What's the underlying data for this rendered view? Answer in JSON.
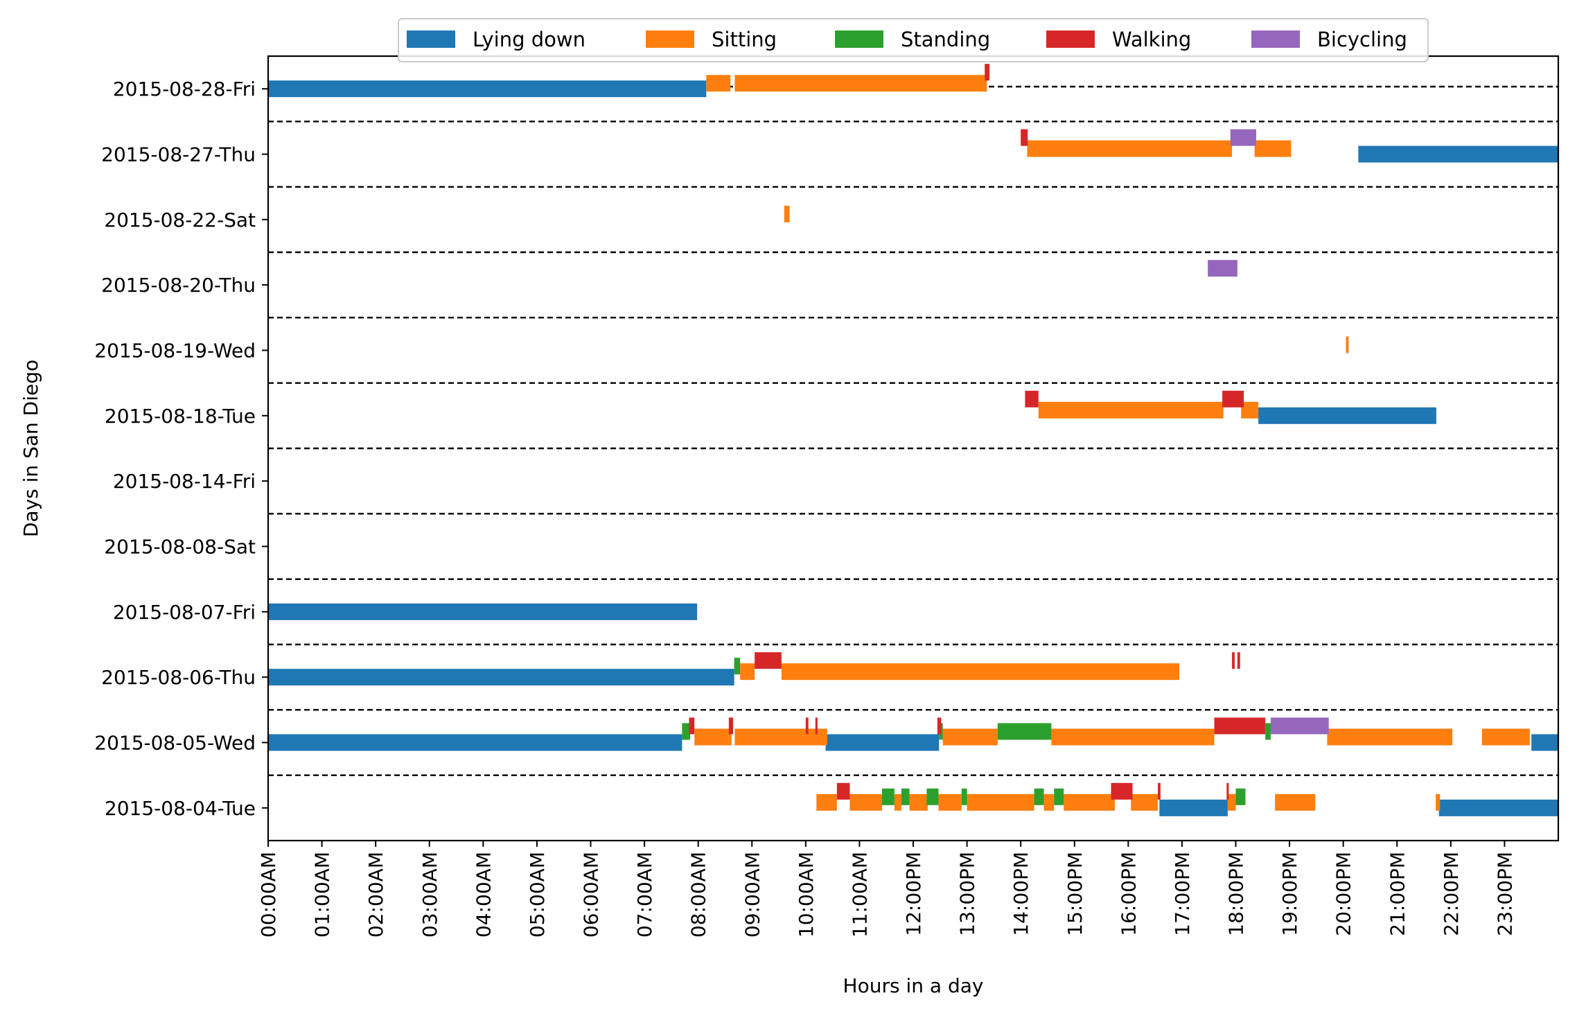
{
  "chart_data": {
    "type": "bar",
    "subtype": "horizontal-timeline",
    "title": "",
    "xlabel": "Hours in a day",
    "ylabel": "Days in San Diego",
    "xlim": [
      0,
      24
    ],
    "grid": false,
    "legend_position": "top-center",
    "x_ticks": [
      "00:00AM",
      "01:00AM",
      "02:00AM",
      "03:00AM",
      "04:00AM",
      "05:00AM",
      "06:00AM",
      "07:00AM",
      "08:00AM",
      "09:00AM",
      "10:00AM",
      "11:00AM",
      "12:00PM",
      "13:00PM",
      "14:00PM",
      "15:00PM",
      "16:00PM",
      "17:00PM",
      "18:00PM",
      "19:00PM",
      "20:00PM",
      "21:00PM",
      "22:00PM",
      "23:00PM"
    ],
    "days": [
      "2015-08-04-Tue",
      "2015-08-05-Wed",
      "2015-08-06-Thu",
      "2015-08-07-Fri",
      "2015-08-08-Sat",
      "2015-08-14-Fri",
      "2015-08-18-Tue",
      "2015-08-19-Wed",
      "2015-08-20-Thu",
      "2015-08-22-Sat",
      "2015-08-27-Thu",
      "2015-08-28-Fri"
    ],
    "series": [
      {
        "name": "Lying down",
        "color": "#1f77b4",
        "segments": [
          {
            "day": "2015-08-04-Tue",
            "start": 16.58,
            "end": 17.85
          },
          {
            "day": "2015-08-04-Tue",
            "start": 21.78,
            "end": 24.0
          },
          {
            "day": "2015-08-05-Wed",
            "start": 0.0,
            "end": 7.7
          },
          {
            "day": "2015-08-05-Wed",
            "start": 10.37,
            "end": 12.48
          },
          {
            "day": "2015-08-05-Wed",
            "start": 23.5,
            "end": 24.0
          },
          {
            "day": "2015-08-06-Thu",
            "start": 0.0,
            "end": 8.67
          },
          {
            "day": "2015-08-07-Fri",
            "start": 0.0,
            "end": 7.98
          },
          {
            "day": "2015-08-18-Tue",
            "start": 18.42,
            "end": 21.73
          },
          {
            "day": "2015-08-27-Thu",
            "start": 20.28,
            "end": 24.0
          },
          {
            "day": "2015-08-28-Fri",
            "start": 0.0,
            "end": 8.15
          }
        ]
      },
      {
        "name": "Sitting",
        "color": "#ff7f0e",
        "segments": [
          {
            "day": "2015-08-04-Tue",
            "start": 10.2,
            "end": 10.58
          },
          {
            "day": "2015-08-04-Tue",
            "start": 10.82,
            "end": 11.42
          },
          {
            "day": "2015-08-04-Tue",
            "start": 11.65,
            "end": 11.78
          },
          {
            "day": "2015-08-04-Tue",
            "start": 11.93,
            "end": 12.27
          },
          {
            "day": "2015-08-04-Tue",
            "start": 12.47,
            "end": 12.9
          },
          {
            "day": "2015-08-04-Tue",
            "start": 13.0,
            "end": 14.25
          },
          {
            "day": "2015-08-04-Tue",
            "start": 14.43,
            "end": 14.62
          },
          {
            "day": "2015-08-04-Tue",
            "start": 14.8,
            "end": 15.75
          },
          {
            "day": "2015-08-04-Tue",
            "start": 16.05,
            "end": 16.55
          },
          {
            "day": "2015-08-04-Tue",
            "start": 17.85,
            "end": 18.0
          },
          {
            "day": "2015-08-04-Tue",
            "start": 18.73,
            "end": 19.48
          },
          {
            "day": "2015-08-04-Tue",
            "start": 21.72,
            "end": 21.8
          },
          {
            "day": "2015-08-05-Wed",
            "start": 7.93,
            "end": 8.62
          },
          {
            "day": "2015-08-05-Wed",
            "start": 8.68,
            "end": 10.4
          },
          {
            "day": "2015-08-05-Wed",
            "start": 12.55,
            "end": 13.57
          },
          {
            "day": "2015-08-05-Wed",
            "start": 14.57,
            "end": 17.6
          },
          {
            "day": "2015-08-05-Wed",
            "start": 19.7,
            "end": 22.03
          },
          {
            "day": "2015-08-05-Wed",
            "start": 22.58,
            "end": 23.47
          },
          {
            "day": "2015-08-06-Thu",
            "start": 8.78,
            "end": 9.05
          },
          {
            "day": "2015-08-06-Thu",
            "start": 9.55,
            "end": 16.95
          },
          {
            "day": "2015-08-18-Tue",
            "start": 14.33,
            "end": 17.77
          },
          {
            "day": "2015-08-18-Tue",
            "start": 18.1,
            "end": 18.42
          },
          {
            "day": "2015-08-19-Wed",
            "start": 20.05,
            "end": 20.1
          },
          {
            "day": "2015-08-22-Sat",
            "start": 9.6,
            "end": 9.7
          },
          {
            "day": "2015-08-27-Thu",
            "start": 14.12,
            "end": 17.93
          },
          {
            "day": "2015-08-27-Thu",
            "start": 18.35,
            "end": 19.03
          },
          {
            "day": "2015-08-28-Fri",
            "start": 8.15,
            "end": 8.6
          },
          {
            "day": "2015-08-28-Fri",
            "start": 8.68,
            "end": 13.37
          }
        ]
      },
      {
        "name": "Standing",
        "color": "#2ca02c",
        "segments": [
          {
            "day": "2015-08-04-Tue",
            "start": 11.42,
            "end": 11.65
          },
          {
            "day": "2015-08-04-Tue",
            "start": 11.78,
            "end": 11.93
          },
          {
            "day": "2015-08-04-Tue",
            "start": 12.25,
            "end": 12.47
          },
          {
            "day": "2015-08-04-Tue",
            "start": 12.9,
            "end": 13.0
          },
          {
            "day": "2015-08-04-Tue",
            "start": 14.25,
            "end": 14.43
          },
          {
            "day": "2015-08-04-Tue",
            "start": 14.62,
            "end": 14.8
          },
          {
            "day": "2015-08-04-Tue",
            "start": 18.0,
            "end": 18.18
          },
          {
            "day": "2015-08-05-Wed",
            "start": 7.7,
            "end": 7.85
          },
          {
            "day": "2015-08-05-Wed",
            "start": 12.48,
            "end": 12.55
          },
          {
            "day": "2015-08-05-Wed",
            "start": 13.57,
            "end": 14.57
          },
          {
            "day": "2015-08-05-Wed",
            "start": 18.55,
            "end": 18.65
          },
          {
            "day": "2015-08-06-Thu",
            "start": 8.67,
            "end": 8.78
          }
        ]
      },
      {
        "name": "Walking",
        "color": "#d62728",
        "segments": [
          {
            "day": "2015-08-04-Tue",
            "start": 10.58,
            "end": 10.82
          },
          {
            "day": "2015-08-04-Tue",
            "start": 15.68,
            "end": 16.08
          },
          {
            "day": "2015-08-04-Tue",
            "start": 16.55,
            "end": 16.6
          },
          {
            "day": "2015-08-04-Tue",
            "start": 17.83,
            "end": 17.87
          },
          {
            "day": "2015-08-05-Wed",
            "start": 7.83,
            "end": 7.93
          },
          {
            "day": "2015-08-05-Wed",
            "start": 8.57,
            "end": 8.65
          },
          {
            "day": "2015-08-05-Wed",
            "start": 10.0,
            "end": 10.05
          },
          {
            "day": "2015-08-05-Wed",
            "start": 10.18,
            "end": 10.22
          },
          {
            "day": "2015-08-05-Wed",
            "start": 12.45,
            "end": 12.52
          },
          {
            "day": "2015-08-05-Wed",
            "start": 17.6,
            "end": 18.55
          },
          {
            "day": "2015-08-06-Thu",
            "start": 9.05,
            "end": 9.55
          },
          {
            "day": "2015-08-06-Thu",
            "start": 17.93,
            "end": 17.98
          },
          {
            "day": "2015-08-06-Thu",
            "start": 18.03,
            "end": 18.08
          },
          {
            "day": "2015-08-18-Tue",
            "start": 14.08,
            "end": 14.33
          },
          {
            "day": "2015-08-18-Tue",
            "start": 17.75,
            "end": 18.15
          },
          {
            "day": "2015-08-27-Thu",
            "start": 14.0,
            "end": 14.13
          },
          {
            "day": "2015-08-28-Fri",
            "start": 13.33,
            "end": 13.42
          }
        ]
      },
      {
        "name": "Bicycling",
        "color": "#9467bd",
        "segments": [
          {
            "day": "2015-08-05-Wed",
            "start": 18.65,
            "end": 19.73
          },
          {
            "day": "2015-08-20-Thu",
            "start": 17.48,
            "end": 18.03
          },
          {
            "day": "2015-08-27-Thu",
            "start": 17.9,
            "end": 18.38
          }
        ]
      }
    ]
  }
}
